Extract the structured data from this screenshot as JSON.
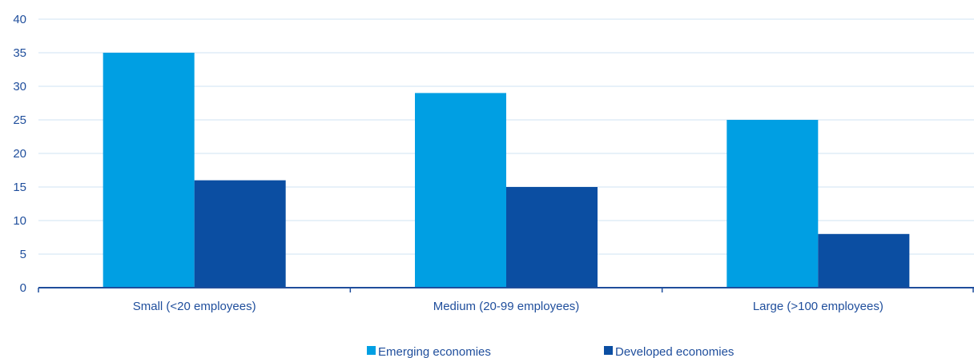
{
  "chart_data": {
    "type": "bar",
    "categories": [
      "Small (<20 employees)",
      "Medium (20-99 employees)",
      "Large (>100 employees)"
    ],
    "series": [
      {
        "name": "Emerging economies",
        "values": [
          35,
          29,
          25
        ],
        "color": "#009fe3"
      },
      {
        "name": "Developed economies",
        "values": [
          16,
          15,
          8
        ],
        "color": "#0b4ea2"
      }
    ],
    "ylim": [
      0,
      40
    ],
    "yticks": [
      0,
      5,
      10,
      15,
      20,
      25,
      30,
      35,
      40
    ],
    "grid": true,
    "legend": "bottom",
    "title": "",
    "xlabel": "",
    "ylabel": ""
  }
}
